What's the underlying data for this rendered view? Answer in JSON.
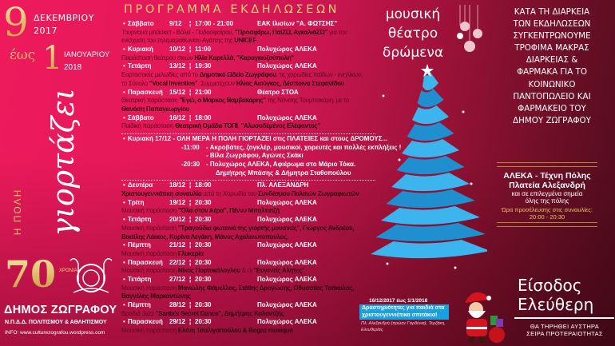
{
  "dates": {
    "start_day": "9",
    "start_month": "ΔΕΚΕΜΒΡΙΟΥ",
    "start_year": "2017",
    "until": "έως",
    "end_day": "1",
    "end_month": "ΙΑΝΟΥΑΡΙΟΥ",
    "end_year": "2018"
  },
  "title": {
    "small": "Η ΠΟΛΗ",
    "main": "γιορτάζει"
  },
  "logo": {
    "years": "70",
    "years_label": "ΧΡΟΝΙΑ",
    "municipality": "ΔΗΜΟΣ ΖΩΓΡΑΦΟΥ",
    "org": "Ν.Π.Δ.Δ. ΠΟΛΙΤΙΣΜΟΥ & ΑΘΛΗΤΙΣΜΟΥ",
    "info": "INFO: www.culturezografou.wordpress.com"
  },
  "program": {
    "heading": "ΠΡΟΓΡΑΜΜΑ ΕΚΔΗΛΩΣΕΩΝ",
    "events": [
      {
        "day": "Σάββατο",
        "date": "9/12",
        "time": "17:00 - 21:00",
        "venue": "ΕΑΚ Ιλισίων \"Α. ΦΩΤΣΗΣ\"",
        "desc": [
          [
            [
              "Τουρνουά μπάσκετ - Βόλεϊ - Ποδοσφαίρου, ",
              0
            ],
            [
              "\"Προσφέρω, ΠαίΖΩ, ΑγκαλιάΖΩ\"",
              1
            ],
            [
              " για την",
              0
            ]
          ],
          [
            [
              "ενίσχυση του τηλεμαραθωνίου Αγάπης της ",
              0
            ],
            [
              "UNICEF",
              1
            ]
          ]
        ]
      },
      {
        "day": "Κυριακή",
        "date": "10/12",
        "time": "11:00",
        "venue": "Πολυχώρος ΑΛΕΚΑ",
        "desc": [
          [
            [
              "Παράσταση θεάτρου σκιών ",
              0
            ],
            [
              "Ηλία Καρελλά, \"Καραγκιοζούπολη\"",
              1
            ]
          ]
        ]
      },
      {
        "day": "Τετάρτη",
        "date": "13/12",
        "time": "19:30",
        "venue": "Πολυχώρος ΑΛΕΚΑ",
        "desc": [
          [
            [
              "Εορταστικές μελωδίες από το ",
              0
            ],
            [
              "Δημοτικό Ωδείο Ζωγράφου",
              1
            ],
            [
              ", τις χορωδίες παίδων - ενηλίκων,",
              0
            ]
          ],
          [
            [
              "το Σύνολο ",
              0
            ],
            [
              "\"Vocal Inventios\"",
              1
            ],
            [
              ". Συμμετέχουν ",
              0
            ],
            [
              "Ηλίας Αιούγκος, Δέσποινα Στεφανίδου",
              1
            ]
          ]
        ]
      },
      {
        "day": "Παρασκευή",
        "date": "15/12",
        "time": "21:00",
        "venue": "Θέατρο ΣΤΟΑ",
        "desc": [
          [
            [
              "Θεατρική παράσταση ",
              0
            ],
            [
              "\"Εγώ, ο Μάρκος Βαμβακάρης\"",
              1
            ],
            [
              " της Νάνσης Τουμπακάρη, με το",
              0
            ]
          ],
          [
            [
              "Θανάση Παπαγεωργίου",
              1
            ]
          ]
        ]
      },
      {
        "day": "Σάββατο",
        "date": "16/12",
        "time": "18:00",
        "venue": "Πολυχώρος ΑΛΕΚΑ",
        "desc": [
          [
            [
              "Παιδική παράσταση ",
              0
            ],
            [
              "Θεατρική Ομάδα ΤΟΠΙ",
              1
            ],
            [
              ", ",
              0
            ],
            [
              "\"Αλυσοδεμένος Ελέφαντος\"",
              1
            ]
          ]
        ]
      }
    ],
    "special": {
      "header": "Κυριακή 17/12  - ΟΛΗ ΜΕΡΑ Η ΠΟΛΗ ΓΙΟΡΤΑΖΕΙ στις ΠΛΑΤΕΙΕΣ και στους ΔΡΟΜΟΥΣ...",
      "lines": [
        [
          "-11:00",
          "- Ακροβάτες, ζογκλέρ, μουσικοί, χορευτές και  πολλές εκπλήξεις !"
        ],
        [
          "",
          "- Βίλα Ζωγράφου, Αγώνες Σκάκι"
        ],
        [
          "-20:30",
          "- Πολυχώρος ΑΛΕΚΑ, Αφιέρωμα στο Μάριο Τόκα."
        ],
        [
          "",
          "Δημήτρης Μπάσης & Δήμητρα Σταθοπούλου"
        ]
      ]
    },
    "events2": [
      {
        "day": "Δευτέρα",
        "date": "18/12",
        "time": "18:00",
        "venue": "Πλ. ΑΛΕΞΑΝΔΡΗ",
        "desc": [
          [
            [
              "Χριστουγεννιάτικη συναυλία",
              1
            ],
            [
              " από τη Χορωδία του ",
              0
            ],
            [
              "Συνδέσμου Παλαιών Ζωγραφιωτών",
              1
            ]
          ]
        ]
      },
      {
        "day": "Τρίτη",
        "date": "19/12",
        "time": "20:30",
        "venue": "Πολυχώρος ΑΛΕΚΑ",
        "desc": [
          [
            [
              "Μουσική  παράσταση ",
              0
            ],
            [
              "\"Όλα στον Αέρα\", Πέννυ Μπαλτατζή",
              1
            ]
          ]
        ]
      },
      {
        "day": "Τετάρτη",
        "date": "20/12",
        "time": "20:30",
        "venue": "Πολυχώρος ΑΛΕΚΑ",
        "desc": [
          [
            [
              "Μουσική παράσταση ",
              0
            ],
            [
              "\"Τραγούδια φωτεινά της γιορτής μουσικές\", Γιώργος Ανδρέου,",
              1
            ]
          ],
          [
            [
              "Βασίλης Λέκκος, Κορίνα Λεγάκη, Μάνος Αχαλινωτόπουλος.",
              1
            ]
          ]
        ]
      },
      {
        "day": "Πέμπτη",
        "date": "21/12",
        "time": "20:30",
        "venue": "Πολυχώρος ΑΛΕΚΑ",
        "desc": [
          [
            [
              "Μουσική  παράσταση ",
              0
            ],
            [
              "Γλυκερία",
              1
            ]
          ]
        ]
      },
      {
        "day": "Παρασκευή",
        "date": "22/12",
        "time": "20:30",
        "venue": "Πολυχώρος ΑΛΕΚΑ",
        "desc": [
          [
            [
              "Μουσική  παράσταση ",
              0
            ],
            [
              "Νίκος Πορτοκάλογλου",
              1
            ],
            [
              " & οι ",
              0
            ],
            [
              "\"Ευγενείς Αλήτες\"",
              1
            ]
          ]
        ]
      },
      {
        "day": "Τετάρτη",
        "date": "27/12",
        "time": "20:30",
        "venue": "Πολυχώρος ΑΛΕΚΑ",
        "desc": [
          [
            [
              "Μουσική παράσταση ",
              0
            ],
            [
              "Μανώλης Φάμελλος, Στάθης Δρογώσης, Οδυσσέας Τσάκαλος,",
              1
            ]
          ],
          [
            [
              "Βαγγέλης Μαρκαντώνης",
              1
            ]
          ]
        ]
      },
      {
        "day": "Πέμπτη",
        "date": "28/12",
        "time": "20:30",
        "venue": "Πολυχώρος ΑΛΕΚΑ",
        "desc": [
          [
            [
              "Βραδιά Jazz ",
              0
            ],
            [
              "\"Santa's Secret Dance\", Δημήτρης Καλαντζής",
              1
            ]
          ]
        ]
      },
      {
        "day": "Παρασκευή",
        "date": "29/12",
        "time": "20:30",
        "venue": "Πολυχώρος ΑΛΕΚΑ",
        "desc": [
          [
            [
              "Μουσική  παράσταση ",
              0
            ],
            [
              "Ελένη Τσαλιγοπούλου & Bogaz musique",
              1
            ]
          ]
        ]
      }
    ]
  },
  "genres": [
    "μουσική",
    "θέατρο",
    "δρώμενα"
  ],
  "donation": [
    "ΚΑΤΑ ΤΗ ΔΙΑΡΚΕΙΑ",
    "ΤΩΝ ΕΚΔΗΛΩΣΕΩΝ",
    "ΣΥΓΚΕΝΤΡΩΝΟΥΜΕ",
    "ΤΡΟΦΙΜΑ ΜΑΚΡΑΣ",
    "ΔΙΑΡΚΕΙΑΣ &",
    "ΦΑΡΜΑΚΑ ΓΙΑ ΤΟ",
    "ΚΟΙΝΩΝΙΚΟ",
    "ΠΑΝΤΟΠΩΛΕΙΟ ΚΑΙ",
    "ΦΑΡΜΑΚΕΙΟ ΤΟΥ",
    "ΔΗΜΟΥ ΖΩΓΡΑΦΟΥ"
  ],
  "venue_box": {
    "line1": "ΑΛΕΚΑ - Τέχνη Πόλης",
    "line2": "Πλατεία Αλεξανδρή",
    "line3": "και σε επιλεγμένα σημεία",
    "line4": "όλης της πόλης",
    "time_label": "Ώρα προσέλευσης στις συναυλίες:",
    "time": "20:00 - 20:30"
  },
  "kids": {
    "dates": "16/12/2017 έως 1/1/2018",
    "line1": "Δραστηριότητες για παιδιά στα",
    "line2": "χριστουγεννιάτικα σπιτάκια!",
    "place1": "Πλ. Αλεξανδρή (πρώην Γαρδένια), Τερζάκη,",
    "place2": "Ελευθερίας."
  },
  "entry": {
    "line1": "Είσοδος",
    "line2": "Ελεύθερη",
    "note1": "ΘΑ ΤΗΡΗΘΕΙ ΑΥΣΤΗΡΑ",
    "note2": "ΣΕΙΡΑ ΠΡΟΤΕΡΑΙΟΤΗΤΑΣ"
  },
  "colors": {
    "pink": "#ee1a5c",
    "maroon": "#4c0c1c",
    "gold": "#e9c46a",
    "tree_blue": "#2ea6e3"
  }
}
